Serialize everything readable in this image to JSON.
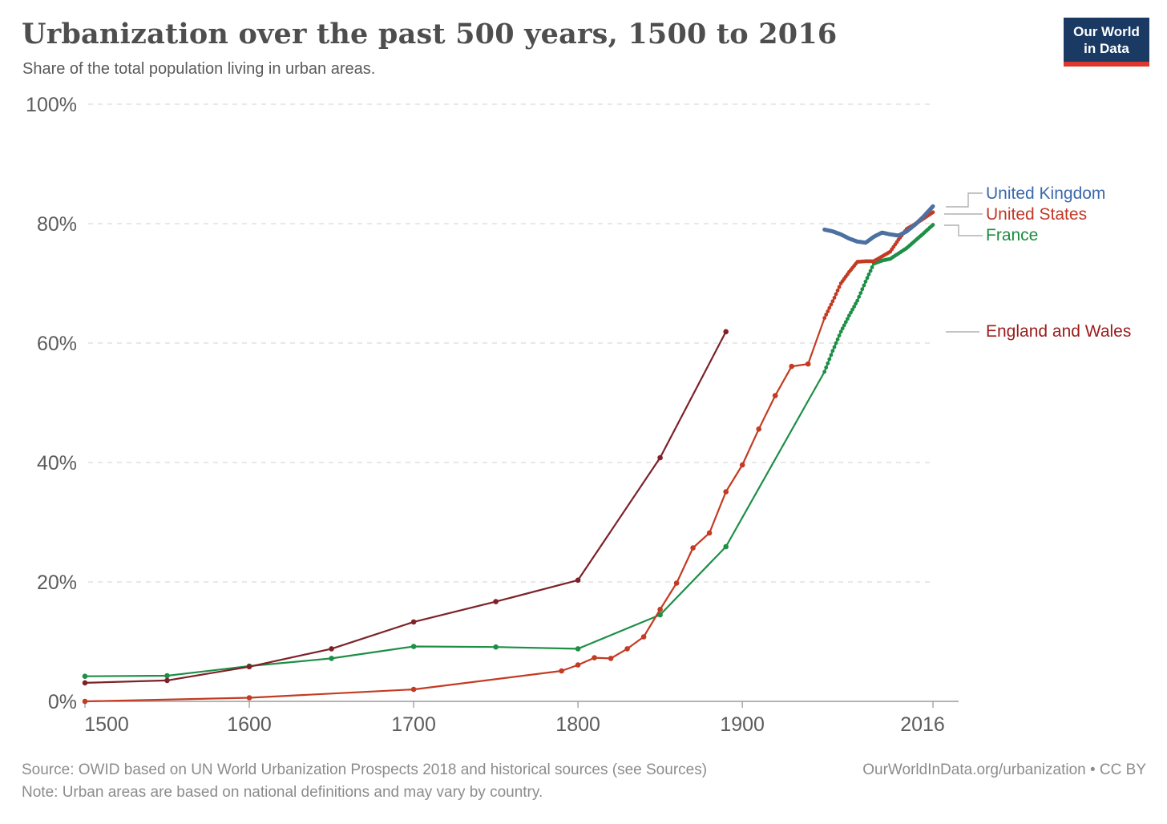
{
  "header": {
    "title": "Urbanization over the past 500 years, 1500 to 2016",
    "subtitle": "Share of the total population living in urban areas."
  },
  "logo": {
    "line1": "Our World",
    "line2": "in Data",
    "bg_color": "#1a3a64",
    "bar_color": "#dd382d"
  },
  "chart_data": {
    "type": "line",
    "title": "Urbanization over the past 500 years, 1500 to 2016",
    "subtitle": "Share of the total population living in urban areas.",
    "unit": "%",
    "xlim": [
      1500,
      2016
    ],
    "ylim": [
      0,
      100
    ],
    "x_ticks": [
      1500,
      1600,
      1700,
      1800,
      1900,
      2016
    ],
    "y_ticks": [
      0,
      20,
      40,
      60,
      80,
      100
    ],
    "grid": "horizontal-dashed",
    "legend_position": "right",
    "series": [
      {
        "name": "United Kingdom",
        "color": "#4c70a0",
        "label_color": "#3c68ae",
        "style": "thick",
        "dense_from": 1950,
        "points": [
          [
            1950,
            79.0
          ],
          [
            1955,
            78.7
          ],
          [
            1960,
            78.2
          ],
          [
            1965,
            77.5
          ],
          [
            1970,
            77.0
          ],
          [
            1975,
            76.8
          ],
          [
            1980,
            77.8
          ],
          [
            1985,
            78.5
          ],
          [
            1990,
            78.2
          ],
          [
            1995,
            78.0
          ],
          [
            2000,
            78.7
          ],
          [
            2005,
            79.8
          ],
          [
            2010,
            81.1
          ],
          [
            2016,
            82.9
          ]
        ]
      },
      {
        "name": "United States",
        "color": "#c33b23",
        "label_color": "#c23827",
        "dense_from": 1950,
        "points": [
          [
            1500,
            0.0
          ],
          [
            1600,
            0.6
          ],
          [
            1700,
            2.0
          ],
          [
            1790,
            5.1
          ],
          [
            1800,
            6.1
          ],
          [
            1810,
            7.3
          ],
          [
            1820,
            7.2
          ],
          [
            1830,
            8.8
          ],
          [
            1840,
            10.8
          ],
          [
            1850,
            15.4
          ],
          [
            1860,
            19.8
          ],
          [
            1870,
            25.7
          ],
          [
            1880,
            28.2
          ],
          [
            1890,
            35.1
          ],
          [
            1900,
            39.6
          ],
          [
            1910,
            45.6
          ],
          [
            1920,
            51.2
          ],
          [
            1930,
            56.1
          ],
          [
            1940,
            56.5
          ],
          [
            1950,
            64.2
          ],
          [
            1955,
            67.0
          ],
          [
            1960,
            70.0
          ],
          [
            1965,
            71.9
          ],
          [
            1970,
            73.6
          ],
          [
            1975,
            73.7
          ],
          [
            1980,
            73.7
          ],
          [
            1985,
            74.5
          ],
          [
            1990,
            75.3
          ],
          [
            1995,
            77.3
          ],
          [
            2000,
            79.1
          ],
          [
            2005,
            79.9
          ],
          [
            2010,
            80.8
          ],
          [
            2016,
            81.9
          ]
        ]
      },
      {
        "name": "France",
        "color": "#1d8f46",
        "label_color": "#1d8b3f",
        "dense_from": 1950,
        "points": [
          [
            1500,
            4.2
          ],
          [
            1550,
            4.3
          ],
          [
            1600,
            5.9
          ],
          [
            1650,
            7.2
          ],
          [
            1700,
            9.2
          ],
          [
            1750,
            9.1
          ],
          [
            1800,
            8.8
          ],
          [
            1850,
            14.5
          ],
          [
            1890,
            25.9
          ],
          [
            1950,
            55.2
          ],
          [
            1955,
            58.7
          ],
          [
            1960,
            61.9
          ],
          [
            1965,
            64.6
          ],
          [
            1970,
            67.1
          ],
          [
            1975,
            70.3
          ],
          [
            1980,
            73.3
          ],
          [
            1985,
            73.8
          ],
          [
            1990,
            74.1
          ],
          [
            1995,
            75.0
          ],
          [
            2000,
            75.9
          ],
          [
            2005,
            77.1
          ],
          [
            2010,
            78.3
          ],
          [
            2016,
            79.8
          ]
        ]
      },
      {
        "name": "England and Wales",
        "color": "#7e2128",
        "label_color": "#9c1b1b",
        "points": [
          [
            1500,
            3.1
          ],
          [
            1550,
            3.5
          ],
          [
            1600,
            5.8
          ],
          [
            1650,
            8.8
          ],
          [
            1700,
            13.3
          ],
          [
            1750,
            16.7
          ],
          [
            1800,
            20.3
          ],
          [
            1850,
            40.8
          ],
          [
            1890,
            61.9
          ]
        ]
      }
    ]
  },
  "footer": {
    "source": "Source: OWID based on UN World Urbanization Prospects 2018 and historical sources (see Sources)",
    "note": "Note: Urban areas are based on national definitions and may vary by country.",
    "link": "OurWorldInData.org/urbanization • CC BY"
  }
}
